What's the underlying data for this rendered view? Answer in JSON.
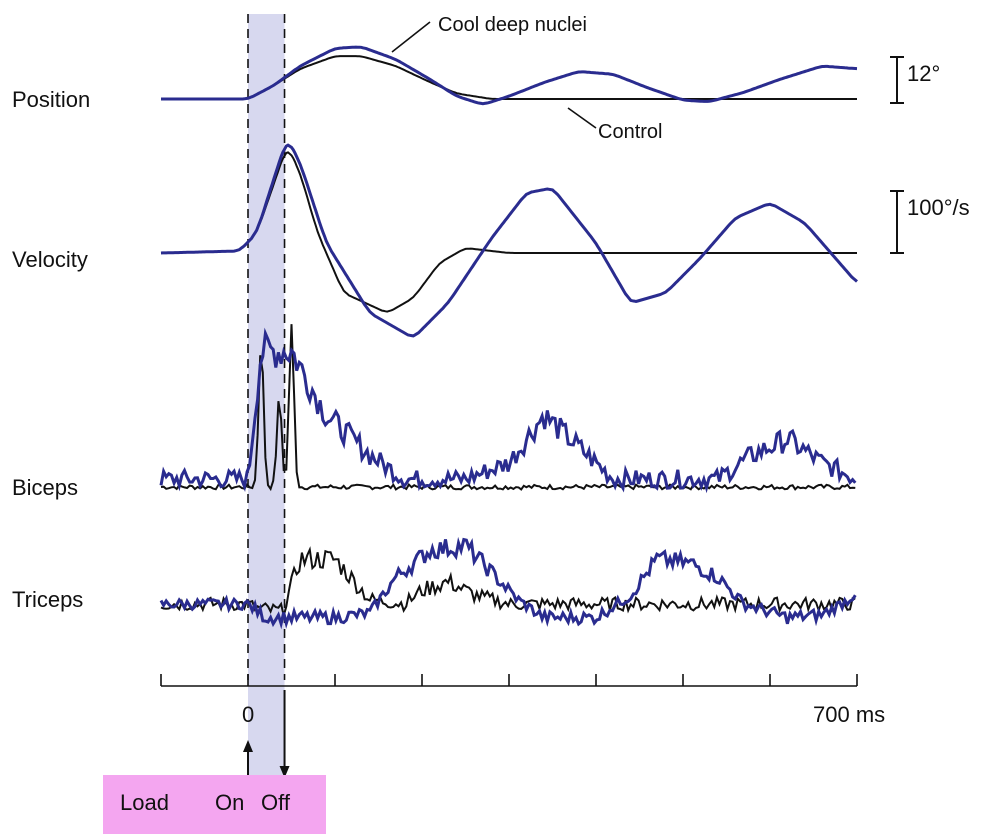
{
  "chart_data": {
    "type": "line",
    "x_unit": "ms",
    "x_range": [
      -100,
      700
    ],
    "x_ticks": [
      -100,
      0,
      100,
      200,
      300,
      400,
      500,
      600,
      700
    ],
    "x_tick_labels": {
      "zero": "0",
      "end": "700 ms"
    },
    "shaded_interval": [
      0,
      42
    ],
    "colors": {
      "control": "#111111",
      "cooled": "#2a2c8f",
      "shade": "#c9cbe9"
    },
    "series_labels": {
      "cooled": "Cool deep nuclei",
      "control": "Control"
    },
    "panels": [
      {
        "label": "Position",
        "scale_bar": "12°",
        "control": [
          [
            -100,
            0
          ],
          [
            0,
            0
          ],
          [
            30,
            0.25
          ],
          [
            60,
            0.55
          ],
          [
            100,
            0.78
          ],
          [
            130,
            0.78
          ],
          [
            170,
            0.6
          ],
          [
            210,
            0.3
          ],
          [
            240,
            0.1
          ],
          [
            280,
            0
          ],
          [
            700,
            0
          ]
        ],
        "cooled": [
          [
            -100,
            0
          ],
          [
            0,
            0
          ],
          [
            30,
            0.25
          ],
          [
            60,
            0.6
          ],
          [
            100,
            0.92
          ],
          [
            130,
            0.95
          ],
          [
            170,
            0.72
          ],
          [
            210,
            0.35
          ],
          [
            240,
            0.05
          ],
          [
            270,
            -0.1
          ],
          [
            300,
            0.05
          ],
          [
            340,
            0.3
          ],
          [
            380,
            0.5
          ],
          [
            420,
            0.45
          ],
          [
            460,
            0.2
          ],
          [
            500,
            -0.02
          ],
          [
            530,
            -0.05
          ],
          [
            570,
            0.12
          ],
          [
            610,
            0.35
          ],
          [
            660,
            0.6
          ],
          [
            700,
            0.55
          ]
        ]
      },
      {
        "label": "Velocity",
        "scale_bar": "100°/s",
        "control": [
          [
            -100,
            0
          ],
          [
            -10,
            0.02
          ],
          [
            10,
            0.2
          ],
          [
            30,
            0.7
          ],
          [
            45,
            1.08
          ],
          [
            60,
            0.8
          ],
          [
            80,
            0.2
          ],
          [
            110,
            -0.4
          ],
          [
            160,
            -0.6
          ],
          [
            190,
            -0.45
          ],
          [
            220,
            -0.1
          ],
          [
            250,
            0.05
          ],
          [
            300,
            0
          ],
          [
            700,
            0
          ]
        ],
        "cooled": [
          [
            -100,
            0
          ],
          [
            -10,
            0.02
          ],
          [
            10,
            0.2
          ],
          [
            30,
            0.75
          ],
          [
            45,
            1.15
          ],
          [
            60,
            0.9
          ],
          [
            90,
            0.1
          ],
          [
            140,
            -0.6
          ],
          [
            190,
            -0.85
          ],
          [
            230,
            -0.5
          ],
          [
            280,
            0.15
          ],
          [
            320,
            0.6
          ],
          [
            350,
            0.65
          ],
          [
            400,
            0.1
          ],
          [
            440,
            -0.5
          ],
          [
            480,
            -0.4
          ],
          [
            520,
            -0.05
          ],
          [
            560,
            0.35
          ],
          [
            600,
            0.5
          ],
          [
            640,
            0.3
          ],
          [
            700,
            -0.3
          ]
        ]
      },
      {
        "label": "Biceps",
        "control_peaks": [
          [
            15,
            0.9
          ],
          [
            36,
            0.55
          ],
          [
            50,
            1.0
          ]
        ],
        "cooled_envelope": [
          [
            -100,
            0.05
          ],
          [
            0,
            0.05
          ],
          [
            15,
            0.85
          ],
          [
            50,
            0.85
          ],
          [
            90,
            0.45
          ],
          [
            140,
            0.2
          ],
          [
            180,
            0.05
          ],
          [
            250,
            0.05
          ],
          [
            300,
            0.15
          ],
          [
            340,
            0.45
          ],
          [
            380,
            0.25
          ],
          [
            420,
            0.05
          ],
          [
            500,
            0.05
          ],
          [
            540,
            0.05
          ],
          [
            580,
            0.2
          ],
          [
            620,
            0.3
          ],
          [
            660,
            0.15
          ],
          [
            700,
            0.05
          ]
        ]
      },
      {
        "label": "Triceps",
        "control_envelope": [
          [
            -100,
            0
          ],
          [
            0,
            0
          ],
          [
            10,
            -0.05
          ],
          [
            40,
            -0.08
          ],
          [
            60,
            0.5
          ],
          [
            100,
            0.5
          ],
          [
            140,
            0.05
          ],
          [
            180,
            0.0
          ],
          [
            200,
            0.15
          ],
          [
            230,
            0.25
          ],
          [
            260,
            0.1
          ],
          [
            300,
            0.0
          ],
          [
            700,
            0.0
          ]
        ],
        "cooled_envelope": [
          [
            -100,
            0
          ],
          [
            0,
            0
          ],
          [
            20,
            -0.15
          ],
          [
            100,
            -0.15
          ],
          [
            140,
            -0.1
          ],
          [
            170,
            0.3
          ],
          [
            210,
            0.6
          ],
          [
            250,
            0.65
          ],
          [
            280,
            0.35
          ],
          [
            310,
            0.05
          ],
          [
            340,
            -0.15
          ],
          [
            400,
            -0.15
          ],
          [
            440,
            0.1
          ],
          [
            470,
            0.5
          ],
          [
            510,
            0.45
          ],
          [
            540,
            0.3
          ],
          [
            570,
            0.0
          ],
          [
            620,
            -0.15
          ],
          [
            660,
            -0.12
          ],
          [
            690,
            0.05
          ],
          [
            700,
            0.15
          ]
        ]
      }
    ]
  },
  "bottom_labels": {
    "load": "Load",
    "on": "On",
    "off": "Off"
  }
}
